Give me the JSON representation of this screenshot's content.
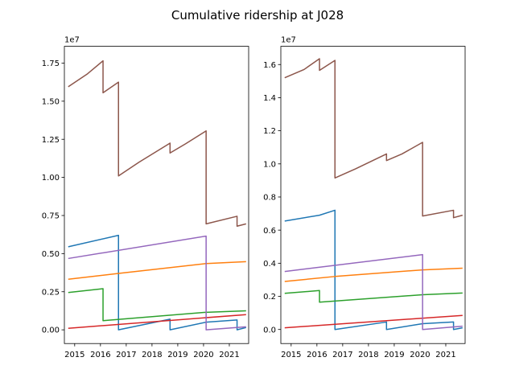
{
  "title": "Cumulative ridership at J028",
  "chart_data": [
    {
      "type": "line",
      "offset_label": "1e7",
      "xlim": [
        2014.6,
        2021.75
      ],
      "ylim": [
        -0.09,
        1.86
      ],
      "xticks": [
        2015,
        2016,
        2017,
        2018,
        2019,
        2020,
        2021
      ],
      "xtick_labels": [
        "2015",
        "2016",
        "2017",
        "2018",
        "2019",
        "2020",
        "2021"
      ],
      "yticks": [
        0.0,
        0.25,
        0.5,
        0.75,
        1.0,
        1.25,
        1.5,
        1.75
      ],
      "ytick_labels": [
        "0.00",
        "0.25",
        "0.50",
        "0.75",
        "1.00",
        "1.25",
        "1.50",
        "1.75"
      ],
      "series": [
        {
          "color": "#1f77b4",
          "x": [
            2014.75,
            2016.7,
            2016.7,
            2018.7,
            2018.7,
            2020.1,
            2021.3,
            2021.3,
            2021.65
          ],
          "y": [
            0.545,
            0.62,
            0.0,
            0.07,
            0.0,
            0.05,
            0.065,
            0.0,
            0.015
          ]
        },
        {
          "color": "#ff7f0e",
          "x": [
            2014.75,
            2016.7,
            2020.1,
            2021.65
          ],
          "y": [
            0.332,
            0.37,
            0.435,
            0.447
          ]
        },
        {
          "color": "#2ca02c",
          "x": [
            2014.75,
            2016.1,
            2016.1,
            2020.1,
            2021.65
          ],
          "y": [
            0.245,
            0.27,
            0.06,
            0.115,
            0.125
          ]
        },
        {
          "color": "#d62728",
          "x": [
            2014.75,
            2021.65
          ],
          "y": [
            0.01,
            0.1
          ]
        },
        {
          "color": "#9467bd",
          "x": [
            2014.75,
            2020.1,
            2020.1,
            2021.65
          ],
          "y": [
            0.468,
            0.615,
            0.0,
            0.02
          ]
        },
        {
          "color": "#8c564b",
          "x": [
            2014.75,
            2015.5,
            2016.1,
            2016.1,
            2016.7,
            2016.7,
            2017.5,
            2018.7,
            2018.7,
            2019.3,
            2020.1,
            2020.1,
            2021.3,
            2021.3,
            2021.65
          ],
          "y": [
            1.595,
            1.68,
            1.765,
            1.555,
            1.625,
            1.01,
            1.1,
            1.225,
            1.16,
            1.22,
            1.305,
            0.695,
            0.745,
            0.68,
            0.695
          ]
        }
      ]
    },
    {
      "type": "line",
      "offset_label": "1e7",
      "xlim": [
        2014.6,
        2021.75
      ],
      "ylim": [
        -0.085,
        1.71
      ],
      "xticks": [
        2015,
        2016,
        2017,
        2018,
        2019,
        2020,
        2021
      ],
      "xtick_labels": [
        "2015",
        "2016",
        "2017",
        "2018",
        "2019",
        "2020",
        "2021"
      ],
      "yticks": [
        0.0,
        0.2,
        0.4,
        0.6,
        0.8,
        1.0,
        1.2,
        1.4,
        1.6
      ],
      "ytick_labels": [
        "0.0",
        "0.2",
        "0.4",
        "0.6",
        "0.8",
        "1.0",
        "1.2",
        "1.4",
        "1.6"
      ],
      "series": [
        {
          "color": "#1f77b4",
          "x": [
            2014.75,
            2016.1,
            2016.7,
            2016.7,
            2018.7,
            2018.7,
            2020.1,
            2021.3,
            2021.3,
            2021.65
          ],
          "y": [
            0.655,
            0.69,
            0.72,
            0.0,
            0.045,
            0.0,
            0.035,
            0.045,
            0.0,
            0.01
          ]
        },
        {
          "color": "#ff7f0e",
          "x": [
            2014.75,
            2016.7,
            2020.1,
            2021.65
          ],
          "y": [
            0.29,
            0.32,
            0.36,
            0.37
          ]
        },
        {
          "color": "#2ca02c",
          "x": [
            2014.75,
            2016.1,
            2016.1,
            2020.1,
            2021.65
          ],
          "y": [
            0.218,
            0.235,
            0.165,
            0.21,
            0.22
          ]
        },
        {
          "color": "#d62728",
          "x": [
            2014.75,
            2021.65
          ],
          "y": [
            0.01,
            0.085
          ]
        },
        {
          "color": "#9467bd",
          "x": [
            2014.75,
            2020.1,
            2020.1,
            2021.65
          ],
          "y": [
            0.35,
            0.452,
            0.0,
            0.02
          ]
        },
        {
          "color": "#8c564b",
          "x": [
            2014.75,
            2015.5,
            2016.1,
            2016.1,
            2016.7,
            2016.7,
            2017.5,
            2018.7,
            2018.7,
            2019.3,
            2020.1,
            2020.1,
            2021.3,
            2021.3,
            2021.65
          ],
          "y": [
            1.52,
            1.57,
            1.635,
            1.565,
            1.625,
            0.915,
            0.97,
            1.06,
            1.02,
            1.06,
            1.13,
            0.685,
            0.72,
            0.675,
            0.69
          ]
        }
      ]
    }
  ]
}
